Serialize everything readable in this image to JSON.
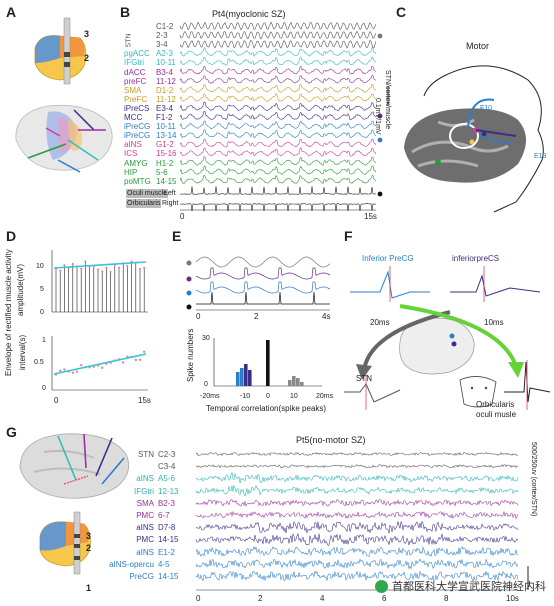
{
  "panels": {
    "A": "A",
    "B": "B",
    "C": "C",
    "D": "D",
    "E": "E",
    "F": "F",
    "G": "G"
  },
  "panelA": {
    "contacts": [
      "3",
      "2"
    ]
  },
  "panelB": {
    "title": "Pt4(myoclonic SZ)",
    "stn_label": "STN",
    "scale_label": "0.1mV/1mV",
    "scale_label2": "STN/cortex/muscle",
    "channels": [
      {
        "region": "",
        "pair": "C1-2",
        "color": "#555555"
      },
      {
        "region": "STN",
        "pair": "2-3",
        "color": "#555555"
      },
      {
        "region": "",
        "pair": "3-4",
        "color": "#555555"
      },
      {
        "region": "pgACC",
        "pair": "A2-3",
        "color": "#33bbbb"
      },
      {
        "region": "IFGtri",
        "pair": "10-11",
        "color": "#33bbbb"
      },
      {
        "region": "dACC",
        "pair": "B3-4",
        "color": "#9b2fa0"
      },
      {
        "region": "preFC",
        "pair": "11-12",
        "color": "#9b2fa0"
      },
      {
        "region": "SMA",
        "pair": "D1-2",
        "color": "#c79a22"
      },
      {
        "region": "PreFC",
        "pair": "11-12",
        "color": "#c79a22"
      },
      {
        "region": "iPreCS",
        "pair": "E3-4",
        "color": "#3b2e8a"
      },
      {
        "region": "MCC",
        "pair": "F1-2",
        "color": "#3b2e8a"
      },
      {
        "region": "iPreCG",
        "pair": "10-11",
        "color": "#2a7ec9"
      },
      {
        "region": "iPreCG",
        "pair": "13-14",
        "color": "#2a7ec9"
      },
      {
        "region": "aINS",
        "pair": "G1-2",
        "color": "#d03a9a"
      },
      {
        "region": "ICS",
        "pair": "15-16",
        "color": "#d03a9a"
      },
      {
        "region": "AMYG",
        "pair": "H1-2",
        "color": "#2a9a3a"
      },
      {
        "region": "HIP",
        "pair": "5-6",
        "color": "#2a9a3a"
      },
      {
        "region": "poMTG",
        "pair": "14-15",
        "color": "#2a9a3a"
      }
    ],
    "muscle_label": "Oculi muscle",
    "muscle_label2": "Orbicularis",
    "muscle_left": "Left",
    "muscle_right": "Right",
    "x_start": "0",
    "x_end": "15s"
  },
  "panelC": {
    "title": "Motor",
    "electrodes": [
      "F10",
      "E3",
      "E13"
    ]
  },
  "panelD": {
    "ylabel_top": "Envelope of rectified muscle activity",
    "ylabel_top2": "amplitude(mV)",
    "ylabel_bottom": "interval(s)",
    "top_ticks": [
      "10",
      "5",
      "0"
    ],
    "bottom_ticks": [
      "1",
      "0.5",
      "0"
    ],
    "x_ticks": [
      "0",
      "15s"
    ]
  },
  "panelE": {
    "x_ticks_top": [
      "0",
      "2",
      "4s"
    ],
    "hist_ylabel": "Spike numbers",
    "hist_yticks": [
      "30",
      "0"
    ],
    "hist_xticks": [
      "-20ms",
      "-10",
      "0",
      "10",
      "20ms"
    ],
    "hist_xlabel": "Temporal correlation(spike peaks)"
  },
  "panelF": {
    "label_precg": "Inferior PreCG",
    "label_precs": "inferiorpreCS",
    "lat_left": "20ms",
    "lat_right": "10ms",
    "stn": "STN",
    "muscle1": "Orbicularis",
    "muscle2": "oculi musle"
  },
  "panelG": {
    "title": "Pt5(no-motor SZ)",
    "scale_label": "500/250uv (cortex/STN)",
    "channels": [
      {
        "region": "STN",
        "pair": "C2-3",
        "color": "#555555"
      },
      {
        "region": "",
        "pair": "C3-4",
        "color": "#555555"
      },
      {
        "region": "aINS",
        "pair": "A5-6",
        "color": "#2bb3b8"
      },
      {
        "region": "IFGtri",
        "pair": "12-13",
        "color": "#2bb3b8"
      },
      {
        "region": "SMA",
        "pair": "B2-3",
        "color": "#9b2fa0"
      },
      {
        "region": "PMC",
        "pair": "6-7",
        "color": "#9b2fa0"
      },
      {
        "region": "aINS",
        "pair": "D7-8",
        "color": "#3b2e8a"
      },
      {
        "region": "PMC",
        "pair": "14-15",
        "color": "#3b2e8a"
      },
      {
        "region": "aINS",
        "pair": "E1-2",
        "color": "#2a7ec9"
      },
      {
        "region": "aINS-opercu",
        "pair": "4-5",
        "color": "#2a7ec9"
      },
      {
        "region": "PreCG",
        "pair": "14-15",
        "color": "#2a7ec9"
      }
    ],
    "x_ticks": [
      "0",
      "2",
      "4",
      "6",
      "8",
      "10s"
    ],
    "contacts": [
      "3",
      "2",
      "1"
    ]
  },
  "watermark": "首都医科大学宣武医院神经内科"
}
